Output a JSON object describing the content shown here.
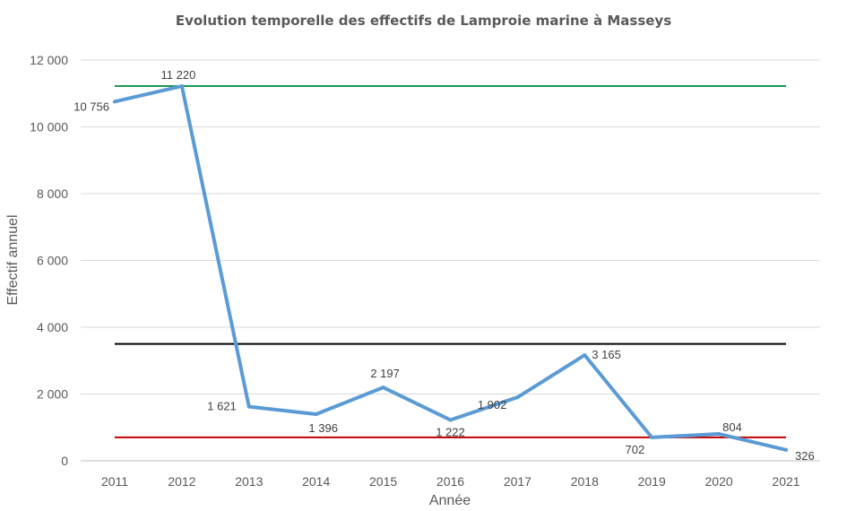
{
  "chart_data": {
    "type": "line",
    "title": "Evolution temporelle des effectifs de Lamproie marine à Masseys",
    "xlabel": "Année",
    "ylabel": "Effectif annuel",
    "categories": [
      "2011",
      "2012",
      "2013",
      "2014",
      "2015",
      "2016",
      "2017",
      "2018",
      "2019",
      "2020",
      "2021"
    ],
    "series": [
      {
        "color": "#5b9bd5",
        "values": [
          10756,
          11220,
          1621,
          1396,
          2197,
          1222,
          1902,
          3165,
          702,
          804,
          326
        ],
        "data_labels": [
          "10 756",
          "11 220",
          "1 621",
          "1 396",
          "2 197",
          "1 222",
          "1 902",
          "3 165",
          "702",
          "804",
          "326"
        ]
      }
    ],
    "reference_lines": [
      {
        "value": 11220,
        "color": "#1a9850"
      },
      {
        "value": 3500,
        "color": "#000000"
      },
      {
        "value": 702,
        "color": "#c00000"
      }
    ],
    "ylim": [
      0,
      12000
    ],
    "yticks": [
      0,
      2000,
      4000,
      6000,
      8000,
      10000,
      12000
    ],
    "ytick_labels": [
      "0",
      "2 000",
      "4 000",
      "6 000",
      "8 000",
      "10 000",
      "12 000"
    ],
    "grid": true,
    "legend": "none"
  }
}
